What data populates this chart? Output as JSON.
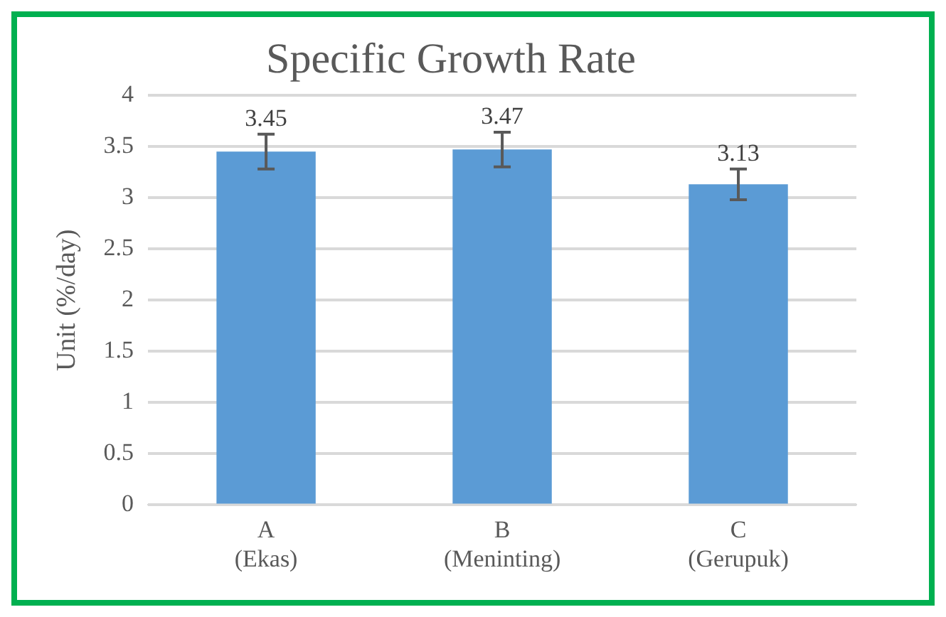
{
  "chart_data": {
    "type": "bar",
    "title": "Specific Growth Rate",
    "ylabel": "Unit (%/day)",
    "categories": [
      "A\n(Ekas)",
      "B\n(Meninting)",
      "C\n(Gerupuk)"
    ],
    "values": [
      3.45,
      3.47,
      3.13
    ],
    "color": "#5b9bd5",
    "errors": [
      0.17,
      0.17,
      0.15
    ],
    "ylim": [
      0,
      4
    ],
    "yticks": [
      0,
      0.5,
      1,
      1.5,
      2,
      2.5,
      3,
      3.5,
      4
    ],
    "grid": "y",
    "data_labels": true,
    "legend": false
  }
}
